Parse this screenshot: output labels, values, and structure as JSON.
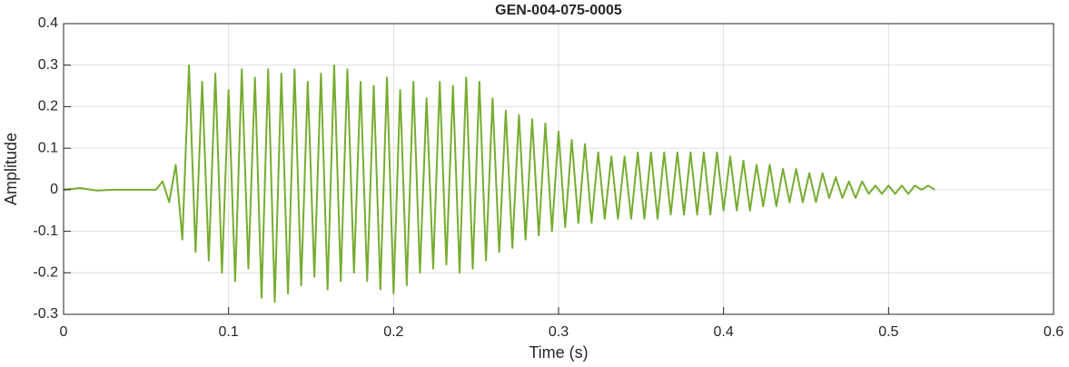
{
  "chart_data": {
    "type": "line",
    "title": "GEN-004-075-0005",
    "x_label": "Time (s)",
    "y_label": "Amplitude",
    "xlim": [
      0,
      0.6
    ],
    "xticks": [
      0,
      0.1,
      0.2,
      0.3,
      0.4,
      0.5,
      0.6
    ],
    "ylim": [
      -0.3,
      0.4
    ],
    "yticks": [
      -0.3,
      -0.2,
      -0.1,
      0,
      0.1,
      0.2,
      0.3,
      0.4
    ],
    "grid": true,
    "x": [
      0,
      0.01,
      0.02,
      0.03,
      0.04,
      0.05,
      0.056,
      0.06,
      0.064,
      0.068,
      0.072,
      0.076,
      0.08,
      0.084,
      0.088,
      0.092,
      0.096,
      0.1,
      0.104,
      0.108,
      0.112,
      0.116,
      0.12,
      0.124,
      0.128,
      0.132,
      0.136,
      0.14,
      0.144,
      0.148,
      0.152,
      0.156,
      0.16,
      0.164,
      0.168,
      0.172,
      0.176,
      0.18,
      0.184,
      0.188,
      0.192,
      0.196,
      0.2,
      0.204,
      0.208,
      0.212,
      0.216,
      0.22,
      0.224,
      0.228,
      0.232,
      0.236,
      0.24,
      0.244,
      0.248,
      0.252,
      0.256,
      0.26,
      0.264,
      0.268,
      0.272,
      0.276,
      0.28,
      0.284,
      0.288,
      0.292,
      0.296,
      0.3,
      0.304,
      0.308,
      0.312,
      0.316,
      0.32,
      0.324,
      0.328,
      0.332,
      0.336,
      0.34,
      0.344,
      0.348,
      0.352,
      0.356,
      0.36,
      0.364,
      0.368,
      0.372,
      0.376,
      0.38,
      0.384,
      0.388,
      0.392,
      0.396,
      0.4,
      0.404,
      0.408,
      0.412,
      0.416,
      0.42,
      0.424,
      0.428,
      0.432,
      0.436,
      0.44,
      0.444,
      0.448,
      0.452,
      0.456,
      0.46,
      0.464,
      0.468,
      0.472,
      0.476,
      0.48,
      0.484,
      0.488,
      0.492,
      0.496,
      0.5,
      0.504,
      0.508,
      0.512,
      0.516,
      0.52,
      0.524,
      0.528
    ],
    "series": [
      {
        "color": "#77ac30",
        "values": [
          0,
          0.004,
          -0.002,
          0,
          0,
          0,
          0,
          0.02,
          -0.03,
          0.06,
          -0.12,
          0.3,
          -0.15,
          0.26,
          -0.17,
          0.28,
          -0.2,
          0.24,
          -0.22,
          0.29,
          -0.19,
          0.27,
          -0.26,
          0.29,
          -0.27,
          0.28,
          -0.25,
          0.29,
          -0.23,
          0.26,
          -0.21,
          0.28,
          -0.24,
          0.3,
          -0.22,
          0.29,
          -0.2,
          0.26,
          -0.22,
          0.25,
          -0.24,
          0.27,
          -0.25,
          0.24,
          -0.23,
          0.26,
          -0.2,
          0.22,
          -0.19,
          0.26,
          -0.18,
          0.25,
          -0.2,
          0.27,
          -0.19,
          0.26,
          -0.17,
          0.22,
          -0.15,
          0.19,
          -0.14,
          0.18,
          -0.12,
          0.17,
          -0.11,
          0.16,
          -0.1,
          0.14,
          -0.09,
          0.12,
          -0.08,
          0.11,
          -0.08,
          0.09,
          -0.07,
          0.08,
          -0.07,
          0.08,
          -0.07,
          0.09,
          -0.07,
          0.09,
          -0.07,
          0.09,
          -0.06,
          0.09,
          -0.06,
          0.09,
          -0.06,
          0.09,
          -0.06,
          0.09,
          -0.05,
          0.08,
          -0.05,
          0.07,
          -0.05,
          0.06,
          -0.04,
          0.06,
          -0.04,
          0.05,
          -0.03,
          0.05,
          -0.03,
          0.04,
          -0.03,
          0.04,
          -0.02,
          0.03,
          -0.02,
          0.02,
          -0.02,
          0.02,
          -0.01,
          0.01,
          -0.01,
          0.01,
          -0.01,
          0.01,
          -0.01,
          0.01,
          0,
          0.01,
          0
        ]
      }
    ]
  }
}
